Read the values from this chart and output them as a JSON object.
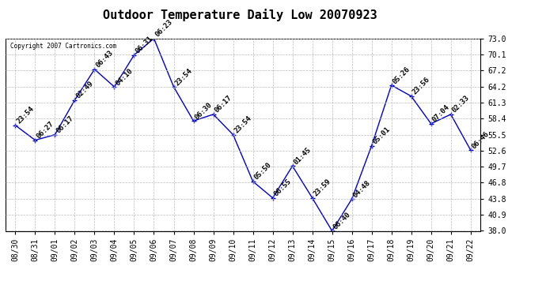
{
  "title": "Outdoor Temperature Daily Low 20070923",
  "copyright_text": "Copyright 2007 Cartronics.com",
  "x_labels": [
    "08/30",
    "08/31",
    "09/01",
    "09/02",
    "09/03",
    "09/04",
    "09/05",
    "09/06",
    "09/07",
    "09/08",
    "09/09",
    "09/10",
    "09/11",
    "09/12",
    "09/13",
    "09/14",
    "09/15",
    "09/16",
    "09/17",
    "09/18",
    "09/19",
    "09/20",
    "09/21",
    "09/22"
  ],
  "y_values": [
    57.2,
    54.5,
    55.5,
    61.8,
    67.4,
    64.2,
    70.0,
    73.0,
    64.2,
    58.0,
    59.2,
    55.5,
    47.0,
    44.0,
    49.8,
    44.0,
    38.0,
    43.8,
    53.5,
    64.5,
    62.5,
    57.5,
    59.2,
    52.7
  ],
  "point_labels": [
    "23:54",
    "06:27",
    "06:17",
    "02:49",
    "06:43",
    "04:10",
    "06:31",
    "06:23",
    "23:54",
    "06:30",
    "06:17",
    "23:54",
    "05:50",
    "06:55",
    "01:45",
    "23:59",
    "06:40",
    "04:48",
    "05:01",
    "05:26",
    "23:56",
    "07:04",
    "02:33",
    "06:46"
  ],
  "line_color": "#0000cc",
  "marker_color": "#0000cc",
  "bg_color": "#ffffff",
  "grid_color": "#bbbbbb",
  "ylim_min": 38.0,
  "ylim_max": 73.0,
  "yticks": [
    38.0,
    40.9,
    43.8,
    46.8,
    49.7,
    52.6,
    55.5,
    58.4,
    61.3,
    64.2,
    67.2,
    70.1,
    73.0
  ],
  "title_fontsize": 11,
  "tick_fontsize": 7,
  "annotation_fontsize": 6.5
}
